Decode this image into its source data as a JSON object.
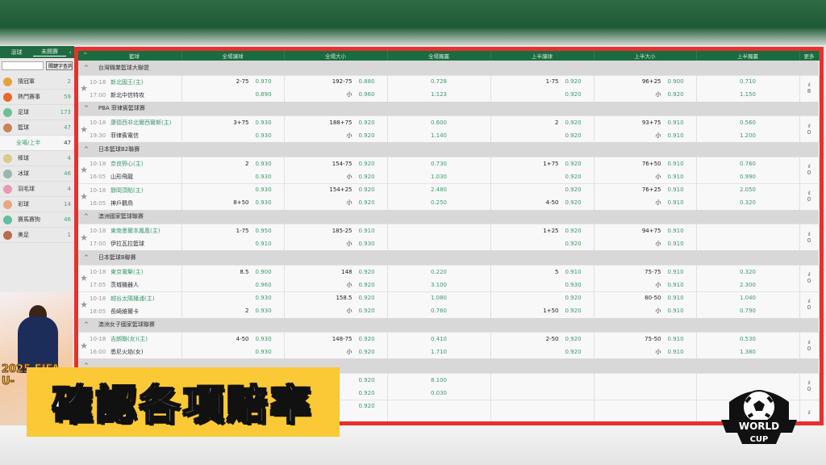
{
  "sidebar": {
    "tabs": [
      "滾球",
      "未開賽"
    ],
    "search_button": "關鍵字查詢",
    "items": [
      {
        "label": "猜冠軍",
        "count": "2",
        "color": "#e3a53a"
      },
      {
        "label": "熱門賽事",
        "count": "59",
        "color": "#e8682a"
      },
      {
        "label": "足球",
        "count": "173",
        "color": "#6cbf94"
      },
      {
        "label": "籃球",
        "count": "47",
        "color": "#c98456"
      },
      {
        "label": "全場/上半",
        "count": "47",
        "sub": true
      },
      {
        "label": "棒球",
        "count": "4",
        "color": "#d9c98c"
      },
      {
        "label": "冰球",
        "count": "46",
        "color": "#9bb5b0"
      },
      {
        "label": "羽毛球",
        "count": "4",
        "color": "#e79ab0"
      },
      {
        "label": "彩球",
        "count": "14",
        "color": "#e8a87c"
      },
      {
        "label": "賽馬賽狗",
        "count": "46",
        "color": "#5fbfa0"
      },
      {
        "label": "美足",
        "count": "1",
        "color": "#b86c4a"
      }
    ]
  },
  "ad": {
    "text": "2025 FIFA U-"
  },
  "table": {
    "headers": [
      "籃球",
      "全場讓球",
      "全場大小",
      "全場獨贏",
      "上半讓球",
      "上半大小",
      "上半獨贏",
      "更多"
    ],
    "leagues": [
      {
        "name": "台灣職業籃球大聯盟",
        "matches": [
          {
            "date": "10-18",
            "time": "17:00",
            "home": "新北國王(主)",
            "away": "新北中信特攻",
            "fh": [
              "2-75",
              "0.970",
              "",
              "0.890"
            ],
            "ft": [
              "192-75",
              "0.880",
              "小",
              "0.960"
            ],
            "fm": [
              "0.728",
              "1.123"
            ],
            "hh": [
              "1-75",
              "0.920",
              "",
              "0.920"
            ],
            "ht": [
              "96+25",
              "0.900",
              "小",
              "0.920"
            ],
            "hm": [
              "0.710",
              "1.150"
            ],
            "more": "8"
          }
        ]
      },
      {
        "name": "PBA 菲律賓籃球賽",
        "matches": [
          {
            "date": "10-18",
            "time": "19:30",
            "home": "康德西非北爾西爾斯(主)",
            "away": "菲律賓電信",
            "fh": [
              "3+75",
              "0.930",
              "",
              "0.930"
            ],
            "ft": [
              "188+75",
              "0.920",
              "小",
              "0.920"
            ],
            "fm": [
              "0.600",
              "1.140"
            ],
            "hh": [
              "2",
              "0.920",
              "",
              "0.920"
            ],
            "ht": [
              "93+75",
              "0.910",
              "小",
              "0.910"
            ],
            "hm": [
              "0.560",
              "1.200"
            ],
            "more": "0"
          }
        ]
      },
      {
        "name": "日本籃球B2聯賽",
        "matches": [
          {
            "date": "10-18",
            "time": "16:05",
            "home": "奈良野心(主)",
            "away": "山形飛龍",
            "fh": [
              "2",
              "0.930",
              "",
              "0.930"
            ],
            "ft": [
              "154-75",
              "0.920",
              "小",
              "0.920"
            ],
            "fm": [
              "0.730",
              "1.030"
            ],
            "hh": [
              "1+75",
              "0.920",
              "",
              "0.920"
            ],
            "ht": [
              "76+50",
              "0.910",
              "小",
              "0.910"
            ],
            "hm": [
              "0.760",
              "0.990"
            ],
            "more": "0"
          },
          {
            "date": "10-18",
            "time": "16:05",
            "home": "靜岡頂點(主)",
            "away": "神戶鸛鳥",
            "fh": [
              "",
              "0.930",
              "8+50",
              "0.930"
            ],
            "ft": [
              "154+25",
              "0.920",
              "小",
              "0.920"
            ],
            "fm": [
              "2.480",
              "0.250"
            ],
            "hh": [
              "",
              "0.920",
              "4-50",
              "0.920"
            ],
            "ht": [
              "76+25",
              "0.910",
              "小",
              "0.910"
            ],
            "hm": [
              "2.050",
              "0.320"
            ],
            "more": "0"
          }
        ]
      },
      {
        "name": "澳洲國家籃球聯賽",
        "matches": [
          {
            "date": "10-18",
            "time": "17:00",
            "home": "東南墨爾本鳳凰(主)",
            "away": "伊拉瓦拉籃球",
            "fh": [
              "1-75",
              "0.950",
              "",
              "0.910"
            ],
            "ft": [
              "185-25",
              "0.910",
              "小",
              "0.930"
            ],
            "fm": [
              "",
              ""
            ],
            "hh": [
              "1+25",
              "0.920",
              "",
              "0.920"
            ],
            "ht": [
              "94+75",
              "0.910",
              "小",
              "0.910"
            ],
            "hm": [
              "",
              ""
            ],
            "more": "0"
          }
        ]
      },
      {
        "name": "日本籃球B聯賽",
        "matches": [
          {
            "date": "10-18",
            "time": "17:05",
            "home": "東京電擊(主)",
            "away": "茨城機器人",
            "fh": [
              "8.5",
              "0.900",
              "",
              "0.960"
            ],
            "ft": [
              "148",
              "0.920",
              "小",
              "0.920"
            ],
            "fm": [
              "0.220",
              "3.100"
            ],
            "hh": [
              "5",
              "0.910",
              "",
              "0.930"
            ],
            "ht": [
              "75-75",
              "0.910",
              "小",
              "0.910"
            ],
            "hm": [
              "0.320",
              "2.300"
            ],
            "more": "0"
          },
          {
            "date": "10-18",
            "time": "18:05",
            "home": "越谷太陽播浦(主)",
            "away": "長崎維爾卡",
            "fh": [
              "",
              "0.930",
              "2",
              "0.930"
            ],
            "ft": [
              "158.5",
              "0.920",
              "小",
              "0.920"
            ],
            "fm": [
              "1.080",
              "0.760"
            ],
            "hh": [
              "",
              "0.920",
              "1+50",
              "0.920"
            ],
            "ht": [
              "80-50",
              "0.910",
              "小",
              "0.910"
            ],
            "hm": [
              "1.040",
              "0.790"
            ],
            "more": "0"
          }
        ]
      },
      {
        "name": "澳洲女子國家籃球聯賽",
        "matches": [
          {
            "date": "10-18",
            "time": "16:00",
            "home": "吉朗聯(女)(主)",
            "away": "悉尼火焰(女)",
            "fh": [
              "4-50",
              "0.930",
              "",
              "0.930"
            ],
            "ft": [
              "148-75",
              "0.920",
              "小",
              "0.920"
            ],
            "fm": [
              "0.410",
              "1.710"
            ],
            "hh": [
              "2-50",
              "0.920",
              "",
              "0.920"
            ],
            "ht": [
              "75-50",
              "0.910",
              "小",
              "0.910"
            ],
            "hm": [
              "0.530",
              "1.380"
            ],
            "more": "0"
          }
        ]
      },
      {
        "name": "",
        "matches": [
          {
            "date": "",
            "time": "",
            "home": "",
            "away": "",
            "fh": [
              "",
              "",
              "",
              ""
            ],
            "ft": [
              "",
              "0.920",
              "",
              "0.920"
            ],
            "fm": [
              "8.100",
              "0.030"
            ],
            "hh": [
              "",
              "",
              "",
              ""
            ],
            "ht": [
              "",
              "",
              "",
              ""
            ],
            "hm": [
              "",
              ""
            ],
            "more": "0"
          },
          {
            "date": "",
            "time": "",
            "home": "",
            "away": "",
            "fh": [
              "",
              "",
              "",
              ""
            ],
            "ft": [
              "",
              "0.920",
              "",
              ""
            ],
            "fm": [
              "",
              ""
            ],
            "hh": [
              "",
              "",
              "",
              ""
            ],
            "ht": [
              "",
              "",
              "",
              ""
            ],
            "hm": [
              "",
              ""
            ],
            "more": ""
          }
        ]
      }
    ]
  },
  "caption": "確認各項賠率",
  "logo": {
    "line1": "WORLD",
    "line2": "CUP"
  },
  "colors": {
    "brand_green": "#1a6b40",
    "odds_green": "#3c9a6e",
    "highlight_red": "#e8302e",
    "caption_yellow": "#fbc935"
  }
}
